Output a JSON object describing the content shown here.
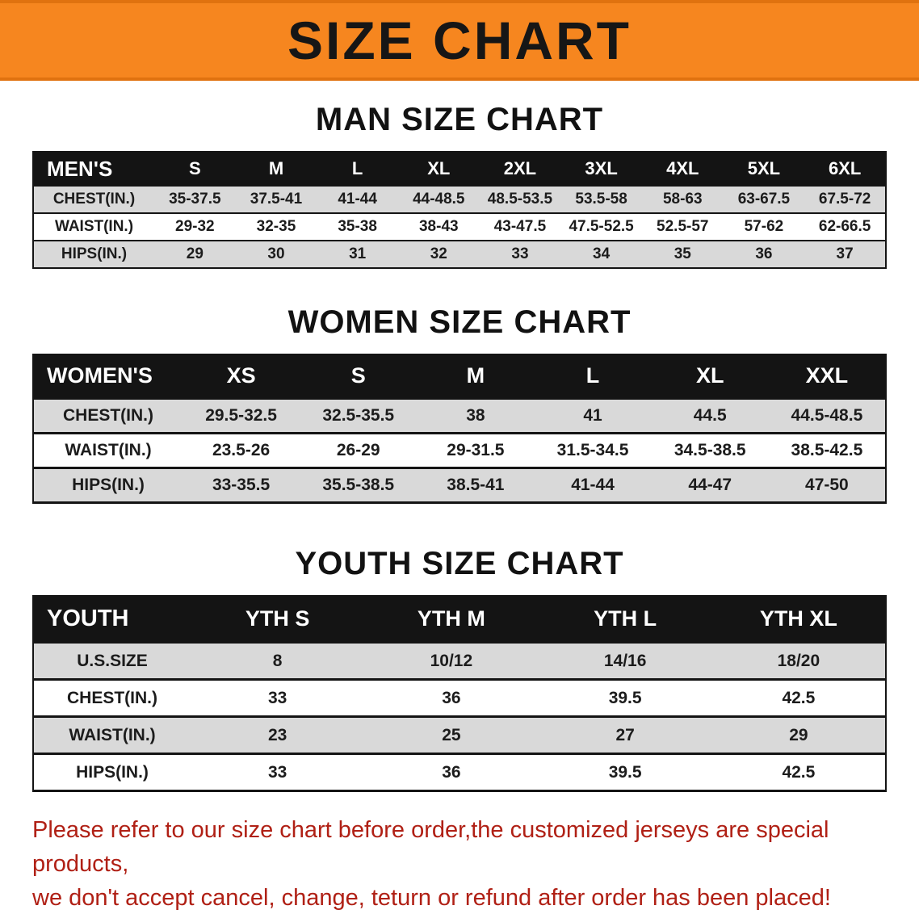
{
  "banner": {
    "title": "SIZE CHART",
    "bg_color": "#f6861f",
    "text_color": "#161616"
  },
  "sections": [
    {
      "key": "men",
      "heading": "MAN SIZE CHART",
      "header": [
        "MEN'S",
        "S",
        "M",
        "L",
        "XL",
        "2XL",
        "3XL",
        "4XL",
        "5XL",
        "6XL"
      ],
      "rows": [
        [
          "CHEST(IN.)",
          "35-37.5",
          "37.5-41",
          "41-44",
          "44-48.5",
          "48.5-53.5",
          "53.5-58",
          "58-63",
          "63-67.5",
          "67.5-72"
        ],
        [
          "WAIST(IN.)",
          "29-32",
          "32-35",
          "35-38",
          "38-43",
          "43-47.5",
          "47.5-52.5",
          "52.5-57",
          "57-62",
          "62-66.5"
        ],
        [
          "HIPS(IN.)",
          "29",
          "30",
          "31",
          "32",
          "33",
          "34",
          "35",
          "36",
          "37"
        ]
      ]
    },
    {
      "key": "women",
      "heading": "WOMEN SIZE CHART",
      "header": [
        "WOMEN'S",
        "XS",
        "S",
        "M",
        "L",
        "XL",
        "XXL"
      ],
      "rows": [
        [
          "CHEST(IN.)",
          "29.5-32.5",
          "32.5-35.5",
          "38",
          "41",
          "44.5",
          "44.5-48.5"
        ],
        [
          "WAIST(IN.)",
          "23.5-26",
          "26-29",
          "29-31.5",
          "31.5-34.5",
          "34.5-38.5",
          "38.5-42.5"
        ],
        [
          "HIPS(IN.)",
          "33-35.5",
          "35.5-38.5",
          "38.5-41",
          "41-44",
          "44-47",
          "47-50"
        ]
      ]
    },
    {
      "key": "youth",
      "heading": "YOUTH SIZE CHART",
      "header": [
        "YOUTH",
        "YTH S",
        "YTH M",
        "YTH L",
        "YTH XL"
      ],
      "rows": [
        [
          "U.S.SIZE",
          "8",
          "10/12",
          "14/16",
          "18/20"
        ],
        [
          "CHEST(IN.)",
          "33",
          "36",
          "39.5",
          "42.5"
        ],
        [
          "WAIST(IN.)",
          "23",
          "25",
          "27",
          "29"
        ],
        [
          "HIPS(IN.)",
          "33",
          "36",
          "39.5",
          "42.5"
        ]
      ]
    }
  ],
  "footer": {
    "line1": "Please refer to our size chart before order,the customized jerseys are special products,",
    "line2": "we don't accept cancel, change, teturn or refund after order has been placed!",
    "text_color": "#b02015"
  }
}
